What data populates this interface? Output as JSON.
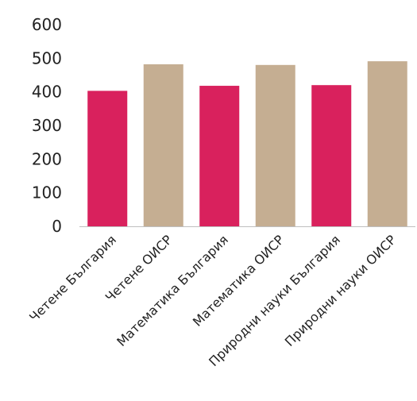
{
  "chart_data": {
    "type": "bar",
    "title": "",
    "xlabel": "",
    "ylabel": "",
    "ylim": [
      0,
      600
    ],
    "yticks": [
      0,
      100,
      200,
      300,
      400,
      500,
      600
    ],
    "grid": false,
    "legend": "none",
    "categories": [
      "Четене България",
      "Четене ОИСР",
      "Математика България",
      "Математика ОИСР",
      "Природни науки България",
      "Природни науки  ОИСР"
    ],
    "values": [
      403,
      482,
      418,
      480,
      420,
      491
    ],
    "bar_colors": [
      "#d9215d",
      "#c5ae92",
      "#d9215d",
      "#c5ae92",
      "#d9215d",
      "#c5ae92"
    ]
  }
}
